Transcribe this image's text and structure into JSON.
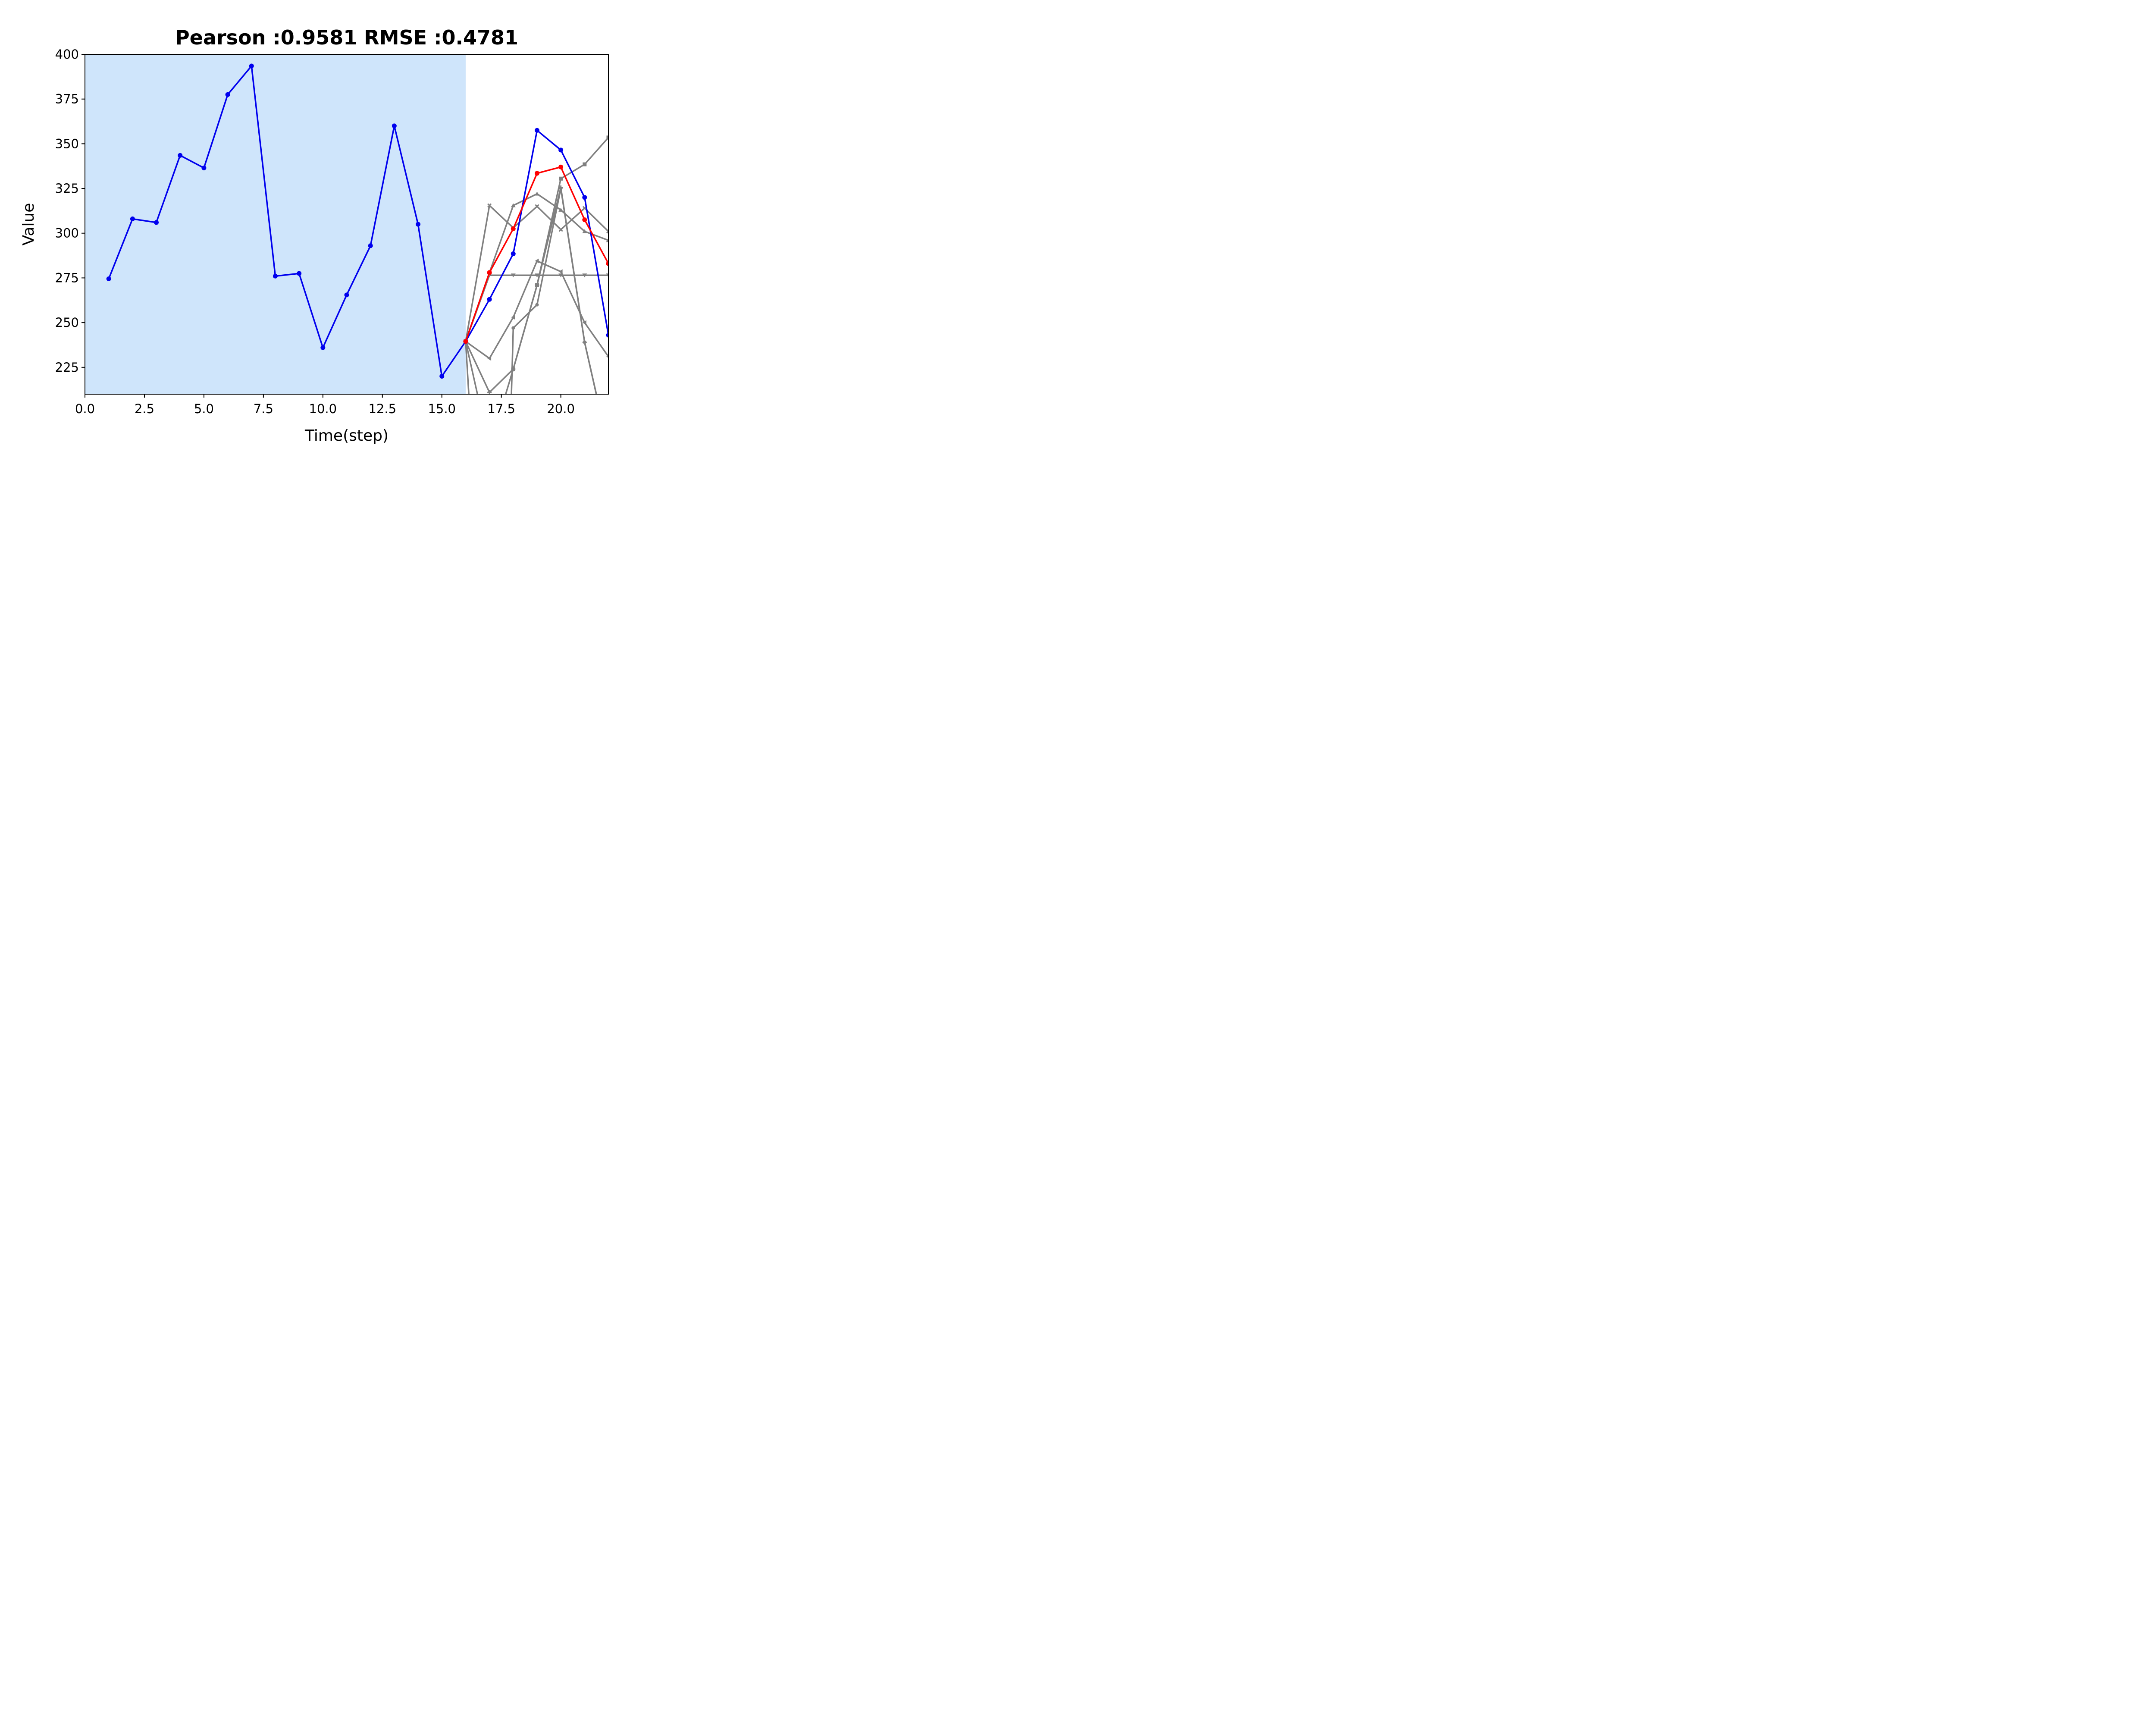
{
  "chart_data": {
    "type": "line",
    "title": "Pearson :0.9581  RMSE :0.4781",
    "xlabel": "Time(step)",
    "ylabel": "Value",
    "xlim": [
      0,
      22
    ],
    "ylim": [
      210,
      400
    ],
    "xticks": [
      "0.0",
      "2.5",
      "5.0",
      "7.5",
      "10.0",
      "12.5",
      "15.0",
      "17.5",
      "20.0"
    ],
    "yticks": [
      "225",
      "250",
      "275",
      "300",
      "325",
      "350",
      "375",
      "400"
    ],
    "history_region": [
      0,
      16
    ],
    "colors": {
      "history_region": "#cfe5fb",
      "actual": "#0000ee",
      "forecast": "#ff0000",
      "samples": "#808080"
    },
    "series": [
      {
        "role": "actual",
        "color": "#0000ee",
        "marker": "circle",
        "x": [
          1,
          2,
          3,
          4,
          5,
          6,
          7,
          8,
          9,
          10,
          11,
          12,
          13,
          14,
          15,
          16,
          17,
          18,
          19,
          20,
          21,
          22
        ],
        "y": [
          274.5,
          308,
          306,
          343.5,
          336.5,
          377.5,
          393.5,
          276,
          277.5,
          236,
          265.5,
          293,
          360,
          305,
          220,
          239.5,
          263,
          288.5,
          357.5,
          346.5,
          320,
          243
        ]
      },
      {
        "role": "forecast",
        "color": "#ff0000",
        "marker": "circle",
        "x": [
          16,
          17,
          18,
          19,
          20,
          21,
          22
        ],
        "y": [
          239.5,
          278,
          302.5,
          333.5,
          337,
          307.5,
          283
        ]
      },
      {
        "role": "sample",
        "color": "#808080",
        "marker": "square",
        "x": [
          16,
          17,
          18,
          19,
          20,
          21,
          22
        ],
        "y": [
          239.5,
          180,
          224,
          271,
          330.5,
          338.5,
          353.5
        ]
      },
      {
        "role": "sample",
        "color": "#808080",
        "marker": "triangle-down",
        "x": [
          16,
          17,
          18,
          19,
          20,
          21,
          22
        ],
        "y": [
          239.5,
          276.5,
          276.5,
          276.5,
          276.5,
          276.5,
          276.5
        ]
      },
      {
        "role": "sample",
        "color": "#808080",
        "marker": "triangle-up",
        "x": [
          16,
          17,
          18,
          19,
          20,
          21,
          22
        ],
        "y": [
          239.5,
          278,
          315.5,
          322,
          313,
          301,
          296
        ]
      },
      {
        "role": "sample",
        "color": "#808080",
        "marker": "x",
        "x": [
          16,
          17,
          18,
          19,
          20,
          21,
          22
        ],
        "y": [
          239.5,
          315.5,
          303,
          315,
          302,
          314,
          301
        ]
      },
      {
        "role": "sample",
        "color": "#808080",
        "marker": "triangle-left",
        "x": [
          16,
          17,
          18,
          19,
          20,
          21,
          22
        ],
        "y": [
          239.5,
          230,
          253,
          284.5,
          278.5,
          250,
          231
        ]
      },
      {
        "role": "sample",
        "color": "#808080",
        "marker": "plus",
        "x": [
          16,
          17,
          18,
          19,
          20,
          21,
          22
        ],
        "y": [
          239.5,
          211,
          224,
          271,
          325.5,
          239,
          180
        ]
      },
      {
        "role": "sample",
        "color": "#808080",
        "marker": "circle-small",
        "x": [
          16,
          16.4,
          17.8,
          18,
          19,
          20,
          21,
          22
        ],
        "y": [
          239.5,
          150,
          150,
          247,
          260,
          325,
          239,
          180
        ]
      }
    ]
  }
}
